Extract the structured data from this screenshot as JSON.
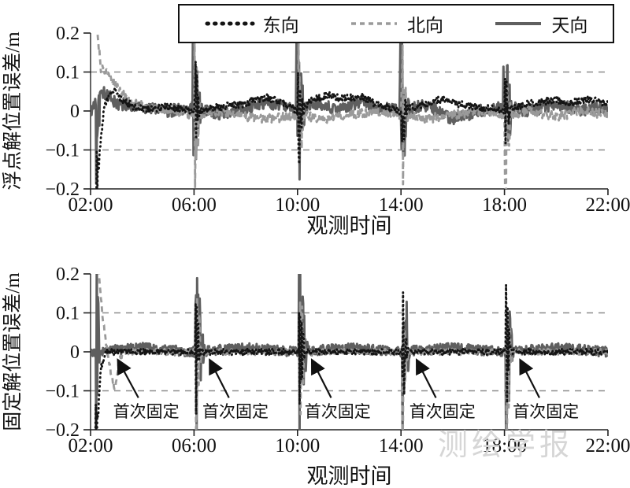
{
  "page": {
    "watermark": "测绘学报"
  },
  "legend": {
    "entries": [
      {
        "label": "东向",
        "color": "#141414",
        "dash": "1.5 8",
        "width": 5,
        "linecap": "round"
      },
      {
        "label": "北向",
        "color": "#9a9a9a",
        "dash": "6 5",
        "width": 3.5,
        "linecap": "butt"
      },
      {
        "label": "天向",
        "color": "#5f5f5f",
        "dash": "",
        "width": 4,
        "linecap": "butt"
      }
    ]
  },
  "chart_data": [
    {
      "type": "line",
      "title": "",
      "ylabel": "浮点解位置误差/m",
      "xlabel": "观测时间",
      "xlim": [
        2,
        22
      ],
      "ylim": [
        -0.2,
        0.2
      ],
      "grid": "dashed horizontal at ±0.1",
      "legend_position": "top center",
      "xticks": [
        {
          "v": 2,
          "label": "02:00"
        },
        {
          "v": 6,
          "label": "06:00"
        },
        {
          "v": 10,
          "label": "10:00"
        },
        {
          "v": 14,
          "label": "14:00"
        },
        {
          "v": 18,
          "label": "18:00"
        },
        {
          "v": 22,
          "label": "22:00"
        }
      ],
      "yticks": [
        {
          "v": 0.2,
          "label": "0.2"
        },
        {
          "v": 0.1,
          "label": "0.1"
        },
        {
          "v": 0,
          "label": "0"
        },
        {
          "v": -0.1,
          "label": "−0.1"
        },
        {
          "v": -0.2,
          "label": "−0.2"
        }
      ],
      "gridlines": [
        0.1,
        -0.1
      ],
      "series": [
        {
          "name": "天向",
          "color": "#5f5f5f",
          "width": 3,
          "dash": "",
          "linecap": "butt",
          "seed": 11,
          "noise": 0.016,
          "keypoints": [
            [
              2,
              0
            ],
            [
              2.5,
              0.05
            ],
            [
              3,
              0.02
            ],
            [
              4,
              0.01
            ],
            [
              5,
              0
            ],
            [
              6,
              0.01
            ],
            [
              7,
              -0.01
            ],
            [
              8,
              0.01
            ],
            [
              9,
              0.02
            ],
            [
              10,
              0
            ],
            [
              10.8,
              0.02
            ],
            [
              11.6,
              0
            ],
            [
              12.4,
              0.025
            ],
            [
              13,
              0.01
            ],
            [
              14,
              0
            ],
            [
              15,
              0.015
            ],
            [
              16,
              -0.02
            ],
            [
              17,
              0
            ],
            [
              18,
              0.01
            ],
            [
              19,
              0
            ],
            [
              20,
              0.02
            ],
            [
              21,
              0
            ],
            [
              22,
              0.01
            ]
          ],
          "events": [
            {
              "t": 2.22,
              "amp": 0.34,
              "dur": 0.18
            },
            {
              "t": 5.95,
              "amp": 0.34,
              "dur": 0.4
            },
            {
              "t": 9.95,
              "amp": 0.36,
              "dur": 0.4
            },
            {
              "t": 13.95,
              "amp": 0.34,
              "dur": 0.4
            },
            {
              "t": 17.95,
              "amp": 0.36,
              "dur": 0.4
            }
          ]
        },
        {
          "name": "北向",
          "color": "#9a9a9a",
          "width": 2.8,
          "dash": "7 5",
          "linecap": "butt",
          "seed": 23,
          "noise": 0.012,
          "keypoints": [
            [
              2,
              0.3
            ],
            [
              2.2,
              0.24
            ],
            [
              2.4,
              0.11
            ],
            [
              2.7,
              0.09
            ],
            [
              3.1,
              0.06
            ],
            [
              3.6,
              0.02
            ],
            [
              4.2,
              0.01
            ],
            [
              5,
              0
            ],
            [
              6,
              -0.01
            ],
            [
              7,
              0
            ],
            [
              8,
              -0.015
            ],
            [
              9,
              -0.02
            ],
            [
              10,
              -0.01
            ],
            [
              11,
              -0.02
            ],
            [
              12,
              -0.01
            ],
            [
              13,
              0
            ],
            [
              14,
              -0.01
            ],
            [
              15,
              -0.02
            ],
            [
              16,
              -0.01
            ],
            [
              17,
              0
            ],
            [
              18,
              -0.01
            ],
            [
              19,
              0
            ],
            [
              20,
              -0.015
            ],
            [
              21,
              0
            ],
            [
              22,
              -0.01
            ]
          ],
          "events": [
            {
              "t": 6.0,
              "amp": 0.3,
              "dur": 0.3
            },
            {
              "t": 10.0,
              "amp": 0.32,
              "dur": 0.32
            },
            {
              "t": 14.0,
              "amp": 0.3,
              "dur": 0.3
            },
            {
              "t": 18.0,
              "amp": 0.32,
              "dur": 0.32
            }
          ]
        },
        {
          "name": "东向",
          "color": "#141414",
          "width": 2.8,
          "dash": "0.8 4.8",
          "linecap": "round",
          "seed": 5,
          "noise": 0.01,
          "keypoints": [
            [
              2,
              -0.3
            ],
            [
              2.2,
              -0.26
            ],
            [
              2.35,
              -0.1
            ],
            [
              2.55,
              0.02
            ],
            [
              2.9,
              0.055
            ],
            [
              3.2,
              0.03
            ],
            [
              3.8,
              0.005
            ],
            [
              5,
              0.01
            ],
            [
              6,
              0
            ],
            [
              7,
              0.01
            ],
            [
              8,
              0.02
            ],
            [
              8.8,
              0.035
            ],
            [
              9.5,
              0.02
            ],
            [
              10,
              0
            ],
            [
              10.6,
              0.03
            ],
            [
              11.2,
              0.04
            ],
            [
              11.8,
              0.03
            ],
            [
              12.4,
              0.04
            ],
            [
              13,
              0.02
            ],
            [
              14,
              0
            ],
            [
              15,
              0.02
            ],
            [
              15.6,
              0.03
            ],
            [
              16.4,
              0.015
            ],
            [
              17,
              0.01
            ],
            [
              18,
              0
            ],
            [
              19,
              0.02
            ],
            [
              20,
              0.03
            ],
            [
              20.6,
              0.02
            ],
            [
              21.2,
              0.03
            ],
            [
              22,
              0.02
            ]
          ],
          "events": [
            {
              "t": 2.2,
              "amp": 0.3,
              "dur": 0.14
            },
            {
              "t": 6.0,
              "amp": 0.2,
              "dur": 0.28
            },
            {
              "t": 10.0,
              "amp": 0.24,
              "dur": 0.3
            },
            {
              "t": 14.0,
              "amp": 0.2,
              "dur": 0.28
            },
            {
              "t": 18.0,
              "amp": 0.2,
              "dur": 0.28
            }
          ]
        }
      ],
      "annotations": []
    },
    {
      "type": "line",
      "title": "",
      "ylabel": "固定解位置误差/m",
      "xlabel": "观测时间",
      "xlim": [
        2,
        22
      ],
      "ylim": [
        -0.2,
        0.2
      ],
      "grid": "dashed horizontal at ±0.1",
      "xticks": [
        {
          "v": 2,
          "label": "02:00"
        },
        {
          "v": 6,
          "label": "06:00"
        },
        {
          "v": 10,
          "label": "10:00"
        },
        {
          "v": 14,
          "label": "14:00"
        },
        {
          "v": 18,
          "label": "18:00"
        },
        {
          "v": 22,
          "label": "22:00"
        }
      ],
      "yticks": [
        {
          "v": 0.2,
          "label": "0.2"
        },
        {
          "v": 0.1,
          "label": "0.1"
        },
        {
          "v": 0,
          "label": "0"
        },
        {
          "v": -0.1,
          "label": "−0.1"
        },
        {
          "v": -0.2,
          "label": "−0.2"
        }
      ],
      "gridlines": [
        0.1,
        -0.1
      ],
      "series": [
        {
          "name": "天向",
          "color": "#5f5f5f",
          "width": 3,
          "dash": "",
          "linecap": "butt",
          "seed": 31,
          "noise": 0.013,
          "keypoints": [
            [
              2,
              0
            ],
            [
              4,
              0.01
            ],
            [
              6,
              0
            ],
            [
              8,
              0.01
            ],
            [
              10,
              0
            ],
            [
              12,
              0.01
            ],
            [
              14,
              0
            ],
            [
              16,
              0.01
            ],
            [
              18,
              0
            ],
            [
              20,
              0.01
            ],
            [
              22,
              0
            ]
          ],
          "events": [
            {
              "t": 2.22,
              "amp": 0.34,
              "dur": 0.18
            },
            {
              "t": 6.05,
              "amp": 0.34,
              "dur": 0.4
            },
            {
              "t": 10.05,
              "amp": 0.36,
              "dur": 0.4
            },
            {
              "t": 14.05,
              "amp": 0.34,
              "dur": 0.35
            },
            {
              "t": 18.05,
              "amp": 0.36,
              "dur": 0.35
            }
          ]
        },
        {
          "name": "北向",
          "color": "#9a9a9a",
          "width": 2.8,
          "dash": "7 5",
          "linecap": "butt",
          "seed": 47,
          "noise": 0.008,
          "keypoints": [
            [
              2,
              0.32
            ],
            [
              2.25,
              0.26
            ],
            [
              2.45,
              0.1
            ],
            [
              2.6,
              0.02
            ],
            [
              2.8,
              -0.06
            ],
            [
              2.95,
              -0.1
            ],
            [
              3.1,
              -0.02
            ],
            [
              3.3,
              0
            ],
            [
              6,
              0
            ],
            [
              10,
              0
            ],
            [
              14,
              0
            ],
            [
              18,
              0
            ],
            [
              22,
              0
            ]
          ],
          "events": [
            {
              "t": 6.05,
              "amp": 0.3,
              "dur": 0.3
            },
            {
              "t": 10.05,
              "amp": 0.32,
              "dur": 0.3
            },
            {
              "t": 14.05,
              "amp": 0.3,
              "dur": 0.28
            },
            {
              "t": 18.05,
              "amp": 0.32,
              "dur": 0.3
            }
          ]
        },
        {
          "name": "东向",
          "color": "#141414",
          "width": 2.8,
          "dash": "0.8 4.8",
          "linecap": "round",
          "seed": 61,
          "noise": 0.008,
          "keypoints": [
            [
              2,
              -0.3
            ],
            [
              2.2,
              -0.25
            ],
            [
              2.4,
              -0.04
            ],
            [
              2.6,
              0
            ],
            [
              22,
              0
            ]
          ],
          "events": [
            {
              "t": 2.2,
              "amp": 0.3,
              "dur": 0.12
            },
            {
              "t": 6.05,
              "amp": 0.2,
              "dur": 0.25
            },
            {
              "t": 10.05,
              "amp": 0.22,
              "dur": 0.28
            },
            {
              "t": 14.05,
              "amp": 0.2,
              "dur": 0.25
            },
            {
              "t": 18.05,
              "amp": 0.2,
              "dur": 0.25
            }
          ]
        }
      ],
      "annotations": [
        {
          "label": "首次固定",
          "tip": [
            3.05,
            -0.02
          ],
          "tail": [
            3.85,
            -0.118
          ],
          "text": [
            4.15,
            -0.168
          ]
        },
        {
          "label": "首次固定",
          "tip": [
            6.6,
            -0.02
          ],
          "tail": [
            7.35,
            -0.118
          ],
          "text": [
            7.6,
            -0.168
          ]
        },
        {
          "label": "首次固定",
          "tip": [
            10.55,
            -0.02
          ],
          "tail": [
            11.3,
            -0.118
          ],
          "text": [
            11.55,
            -0.168
          ]
        },
        {
          "label": "首次固定",
          "tip": [
            14.6,
            -0.02
          ],
          "tail": [
            15.35,
            -0.118
          ],
          "text": [
            15.6,
            -0.168
          ]
        },
        {
          "label": "首次固定",
          "tip": [
            18.6,
            -0.02
          ],
          "tail": [
            19.35,
            -0.118
          ],
          "text": [
            19.6,
            -0.168
          ]
        }
      ]
    }
  ]
}
